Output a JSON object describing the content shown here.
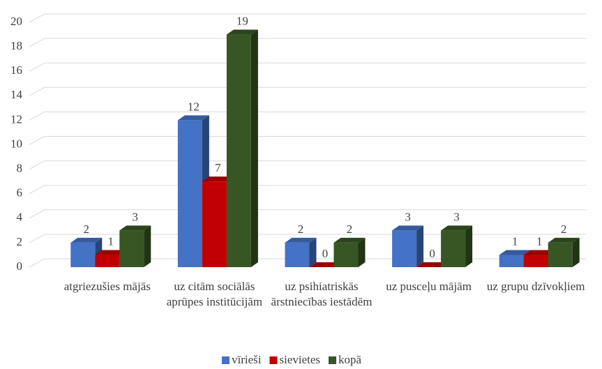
{
  "chart_data": {
    "type": "bar3d",
    "categories": [
      "atgriezušies mājās",
      "uz citām sociālās aprūpes institūcijām",
      "uz psihiatriskās ārstniecības iestādēm",
      "uz pusceļu mājām",
      "uz grupu dzīvokļiem"
    ],
    "series": [
      {
        "name": "vīrieši",
        "color": "#4472c4",
        "values": [
          2,
          12,
          2,
          3,
          1
        ]
      },
      {
        "name": "sievietes",
        "color": "#c00000",
        "values": [
          1,
          7,
          0,
          0,
          1
        ]
      },
      {
        "name": "kopā",
        "color": "#375623",
        "values": [
          3,
          19,
          2,
          3,
          2
        ]
      }
    ],
    "ylim": [
      0,
      20
    ],
    "yticks": [
      0,
      2,
      4,
      6,
      8,
      10,
      12,
      14,
      16,
      18,
      20
    ],
    "grid": true,
    "legend": "bottom"
  }
}
